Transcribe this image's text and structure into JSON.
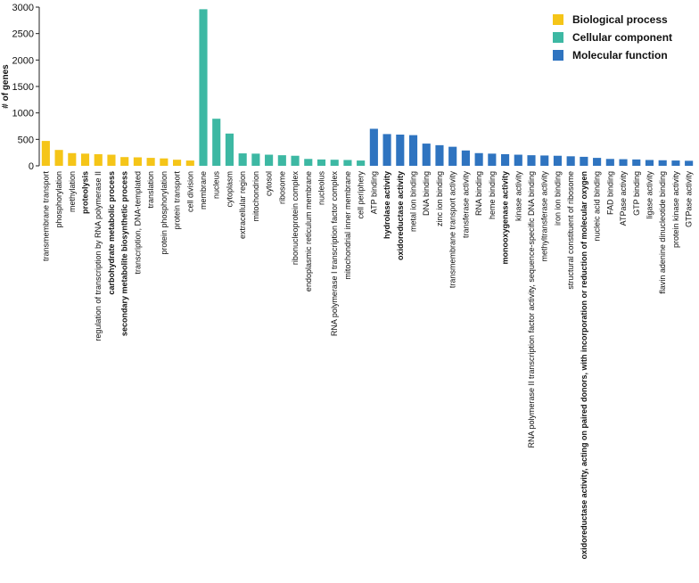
{
  "chart_data": {
    "type": "bar",
    "ylabel": "# of genes",
    "xlabel": "",
    "ylim": [
      0,
      3000
    ],
    "yticks": [
      0,
      500,
      1000,
      1500,
      2000,
      2500,
      3000
    ],
    "grid": false,
    "legend_position": "top-right",
    "colors": {
      "bp": "#F5C518",
      "cc": "#3DB8A3",
      "mf": "#2F74C0"
    },
    "legend": [
      {
        "key": "bp",
        "label": "Biological process"
      },
      {
        "key": "cc",
        "label": "Cellular component"
      },
      {
        "key": "mf",
        "label": "Molecular function"
      }
    ],
    "bars": [
      {
        "label": "transmembrane transport",
        "value": 470,
        "group": "bp",
        "bold": false
      },
      {
        "label": "phosphorylation",
        "value": 300,
        "group": "bp",
        "bold": false
      },
      {
        "label": "methylation",
        "value": 240,
        "group": "bp",
        "bold": false
      },
      {
        "label": "proteolysis",
        "value": 230,
        "group": "bp",
        "bold": true
      },
      {
        "label": "regulation of transcription by RNA polymerase II",
        "value": 220,
        "group": "bp",
        "bold": false
      },
      {
        "label": "carbohydrate metabolic process",
        "value": 210,
        "group": "bp",
        "bold": true
      },
      {
        "label": "secondary metabolite biosynthetic process",
        "value": 165,
        "group": "bp",
        "bold": true
      },
      {
        "label": "transcription, DNA-templated",
        "value": 160,
        "group": "bp",
        "bold": false
      },
      {
        "label": "translation",
        "value": 150,
        "group": "bp",
        "bold": false
      },
      {
        "label": "protein phosphorylation",
        "value": 140,
        "group": "bp",
        "bold": false
      },
      {
        "label": "protein transport",
        "value": 115,
        "group": "bp",
        "bold": false
      },
      {
        "label": "cell division",
        "value": 100,
        "group": "bp",
        "bold": false
      },
      {
        "label": "membrane",
        "value": 2960,
        "group": "cc",
        "bold": false
      },
      {
        "label": "nucleus",
        "value": 890,
        "group": "cc",
        "bold": false
      },
      {
        "label": "cytoplasm",
        "value": 610,
        "group": "cc",
        "bold": false
      },
      {
        "label": "extracellular region",
        "value": 235,
        "group": "cc",
        "bold": false
      },
      {
        "label": "mitochondrion",
        "value": 230,
        "group": "cc",
        "bold": false
      },
      {
        "label": "cytosol",
        "value": 210,
        "group": "cc",
        "bold": false
      },
      {
        "label": "ribosome",
        "value": 200,
        "group": "cc",
        "bold": false
      },
      {
        "label": "ribonucleoprotein complex",
        "value": 190,
        "group": "cc",
        "bold": false
      },
      {
        "label": "endoplasmic reticulum membrane",
        "value": 130,
        "group": "cc",
        "bold": false
      },
      {
        "label": "nucleolus",
        "value": 120,
        "group": "cc",
        "bold": false
      },
      {
        "label": "RNA polymerase I transcription factor complex",
        "value": 115,
        "group": "cc",
        "bold": false
      },
      {
        "label": "mitochondrial inner membrane",
        "value": 110,
        "group": "cc",
        "bold": false
      },
      {
        "label": "cell periphery",
        "value": 100,
        "group": "cc",
        "bold": false
      },
      {
        "label": "ATP binding",
        "value": 700,
        "group": "mf",
        "bold": false
      },
      {
        "label": "hydrolase activity",
        "value": 600,
        "group": "mf",
        "bold": true
      },
      {
        "label": "oxidoreductase activity",
        "value": 590,
        "group": "mf",
        "bold": true
      },
      {
        "label": "metal ion binding",
        "value": 580,
        "group": "mf",
        "bold": false
      },
      {
        "label": "DNA binding",
        "value": 420,
        "group": "mf",
        "bold": false
      },
      {
        "label": "zinc ion binding",
        "value": 390,
        "group": "mf",
        "bold": false
      },
      {
        "label": "transmembrane transport activity",
        "value": 360,
        "group": "mf",
        "bold": false
      },
      {
        "label": "transferase activity",
        "value": 290,
        "group": "mf",
        "bold": false
      },
      {
        "label": "RNA binding",
        "value": 240,
        "group": "mf",
        "bold": false
      },
      {
        "label": "heme binding",
        "value": 230,
        "group": "mf",
        "bold": false
      },
      {
        "label": "monooxygenase activity",
        "value": 220,
        "group": "mf",
        "bold": true
      },
      {
        "label": "kinase activity",
        "value": 210,
        "group": "mf",
        "bold": false
      },
      {
        "label": "RNA polymerase II transcription factor activity, sequence-specific DNA binding",
        "value": 200,
        "group": "mf",
        "bold": false
      },
      {
        "label": "methyltransferase activity",
        "value": 195,
        "group": "mf",
        "bold": false
      },
      {
        "label": "iron ion binding",
        "value": 190,
        "group": "mf",
        "bold": false
      },
      {
        "label": "structural constituent of ribosome",
        "value": 180,
        "group": "mf",
        "bold": false
      },
      {
        "label": "oxidoreductase activity, acting on paired donors, with incorporation or reduction of molecular oxygen",
        "value": 170,
        "group": "mf",
        "bold": true
      },
      {
        "label": "nucleic acid binding",
        "value": 150,
        "group": "mf",
        "bold": false
      },
      {
        "label": "FAD binding",
        "value": 130,
        "group": "mf",
        "bold": false
      },
      {
        "label": "ATPase activity",
        "value": 125,
        "group": "mf",
        "bold": false
      },
      {
        "label": "GTP binding",
        "value": 120,
        "group": "mf",
        "bold": false
      },
      {
        "label": "ligase activity",
        "value": 110,
        "group": "mf",
        "bold": false
      },
      {
        "label": "flavin adenine dinucleotide binding",
        "value": 105,
        "group": "mf",
        "bold": false
      },
      {
        "label": "protein kinase activity",
        "value": 100,
        "group": "mf",
        "bold": false
      },
      {
        "label": "GTPase activity",
        "value": 95,
        "group": "mf",
        "bold": false
      }
    ]
  }
}
